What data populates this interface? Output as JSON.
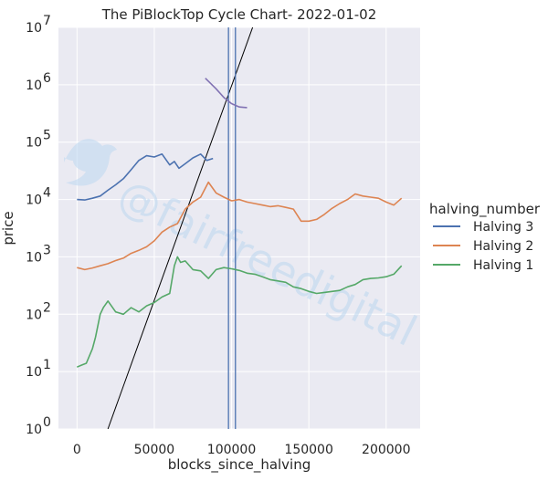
{
  "chart_data": {
    "type": "line",
    "title": "The PiBlockTop Cycle Chart- 2022-01-02",
    "xlabel": "blocks_since_halving",
    "ylabel": "price",
    "xlim": [
      -12000,
      222000
    ],
    "ylim_log10": [
      0,
      7
    ],
    "x_ticks": [
      0,
      50000,
      100000,
      150000,
      200000
    ],
    "y_tick_exponents": [
      0,
      1,
      2,
      3,
      4,
      5,
      6,
      7
    ],
    "y_tick_base": "10",
    "yscale": "log",
    "grid": true,
    "legend": {
      "title": "halving_number",
      "placement": "right"
    },
    "watermark": "@fairfreedigital",
    "colors": {
      "background": "#eaeaf2",
      "grid": "#ffffff",
      "halving3": "#4c72b0",
      "halving2": "#dd8452",
      "halving1": "#55a868",
      "trend": "#000000",
      "top_curve": "#8172b3",
      "vlines": "#4c72b0"
    },
    "series": [
      {
        "name": "Halving 3",
        "color": "#4c72b0",
        "x": [
          0,
          5000,
          10000,
          15000,
          20000,
          25000,
          30000,
          35000,
          40000,
          45000,
          50000,
          55000,
          60000,
          63000,
          66000,
          70000,
          75000,
          80000,
          84000,
          88000
        ],
        "y": [
          10000,
          9800,
          10500,
          11500,
          14500,
          18000,
          23000,
          33000,
          48000,
          58000,
          55000,
          62000,
          40000,
          46000,
          35000,
          42000,
          53000,
          62000,
          48000,
          52000
        ]
      },
      {
        "name": "Halving 2",
        "color": "#dd8452",
        "x": [
          0,
          5000,
          10000,
          15000,
          20000,
          25000,
          30000,
          35000,
          40000,
          45000,
          50000,
          55000,
          60000,
          65000,
          70000,
          75000,
          80000,
          85000,
          90000,
          95000,
          100000,
          105000,
          110000,
          115000,
          120000,
          125000,
          130000,
          135000,
          140000,
          145000,
          150000,
          155000,
          160000,
          165000,
          170000,
          175000,
          180000,
          185000,
          190000,
          195000,
          200000,
          205000,
          210000
        ],
        "y": [
          650,
          600,
          640,
          700,
          760,
          860,
          950,
          1150,
          1300,
          1500,
          1900,
          2700,
          3300,
          3800,
          6800,
          9000,
          11000,
          20000,
          13000,
          11000,
          9500,
          10000,
          9000,
          8500,
          8000,
          7500,
          7800,
          7300,
          6800,
          4200,
          4200,
          4500,
          5500,
          7000,
          8500,
          10000,
          12500,
          11500,
          11000,
          10500,
          9000,
          8000,
          10500
        ]
      },
      {
        "name": "Halving 1",
        "color": "#55a868",
        "x": [
          0,
          3000,
          6000,
          10000,
          12000,
          15000,
          17000,
          20000,
          25000,
          30000,
          35000,
          40000,
          45000,
          50000,
          55000,
          60000,
          63000,
          65000,
          67000,
          70000,
          75000,
          80000,
          85000,
          90000,
          95000,
          100000,
          105000,
          110000,
          115000,
          120000,
          125000,
          130000,
          135000,
          140000,
          145000,
          150000,
          155000,
          160000,
          165000,
          170000,
          175000,
          180000,
          185000,
          190000,
          195000,
          200000,
          205000,
          210000
        ],
        "y": [
          12,
          13,
          14,
          25,
          40,
          100,
          130,
          170,
          110,
          100,
          130,
          110,
          140,
          160,
          200,
          230,
          700,
          1000,
          800,
          850,
          600,
          570,
          420,
          600,
          650,
          620,
          580,
          520,
          500,
          450,
          400,
          380,
          360,
          300,
          280,
          250,
          230,
          240,
          250,
          260,
          300,
          330,
          400,
          420,
          430,
          450,
          500,
          700
        ]
      }
    ],
    "overlays": {
      "trend_line": {
        "color": "#000000",
        "x": [
          20000,
          120000
        ],
        "y": [
          1,
          30000000
        ]
      },
      "top_curve": {
        "color": "#8172b3",
        "x": [
          83000,
          90000,
          95000,
          100000,
          105000,
          110000
        ],
        "y": [
          1300000,
          850000,
          600000,
          470000,
          410000,
          400000
        ]
      },
      "vertical_lines": {
        "color": "#4c72b0",
        "x": [
          98000,
          102500
        ]
      }
    }
  }
}
